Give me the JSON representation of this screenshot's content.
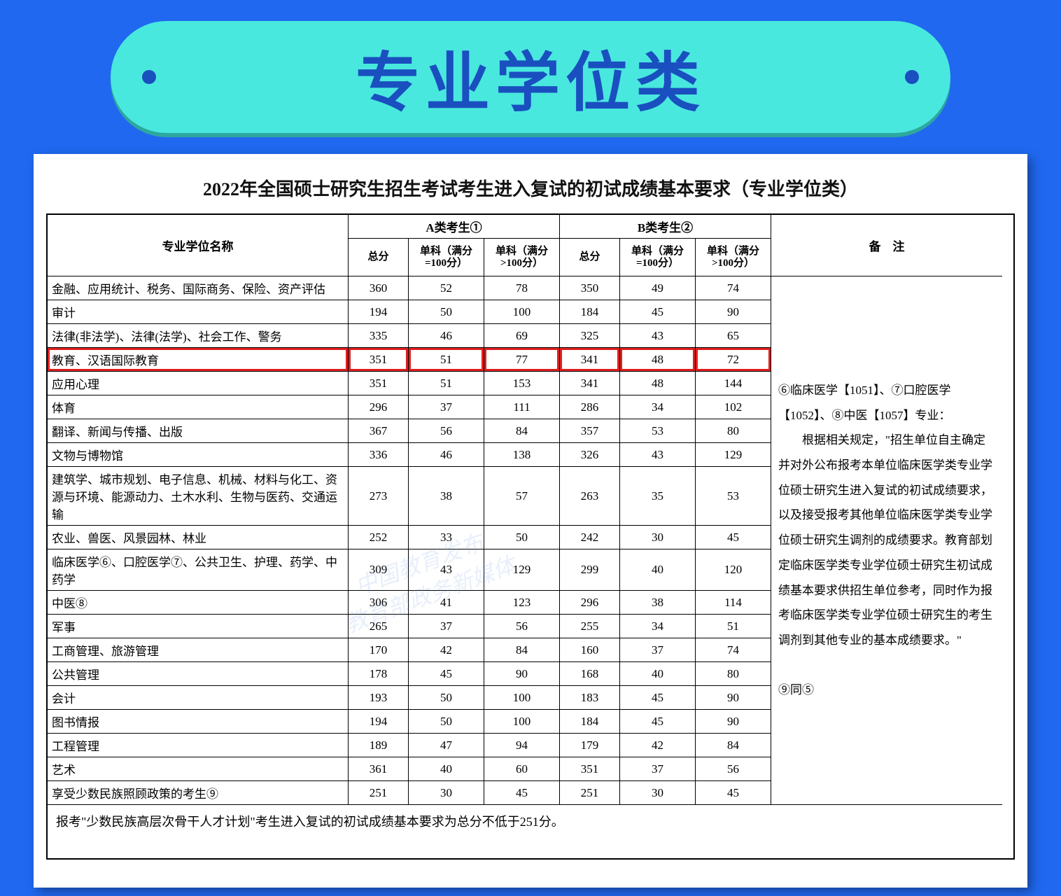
{
  "banner": {
    "title": "专业学位类"
  },
  "sheet": {
    "title": "2022年全国硕士研究生招生考试考生进入复试的初试成绩基本要求（专业学位类）"
  },
  "watermark": {
    "line1": "中国教育发布",
    "line2": "教育部政务新媒体"
  },
  "headers": {
    "name": "专业学位名称",
    "groupA": "A类考生①",
    "groupB": "B类考生②",
    "notes": "备　注",
    "total": "总分",
    "sub100": "单科（满分=100分）",
    "subgt100": "单科（满分>100分）"
  },
  "notes_text": "⑥临床医学【1051】、⑦口腔医学【1052】、⑧中医【1057】专业：\n　　根据相关规定，\"招生单位自主确定并对外公布报考本单位临床医学类专业学位硕士研究生进入复试的初试成绩要求，以及接受报考其他单位临床医学类专业学位硕士研究生调剂的成绩要求。教育部划定临床医学类专业学位硕士研究生初试成绩基本要求供招生单位参考，同时作为报考临床医学类专业学位硕士研究生的考生调剂到其他专业的基本成绩要求。\"\n\n⑨同⑤",
  "footnote": "报考\"少数民族高层次骨干人才计划\"考生进入复试的初试成绩基本要求为总分不低于251分。",
  "rows": [
    {
      "name": "金融、应用统计、税务、国际商务、保险、资产评估",
      "a": [
        "360",
        "52",
        "78"
      ],
      "b": [
        "350",
        "49",
        "74"
      ],
      "h": 2
    },
    {
      "name": "审计",
      "a": [
        "194",
        "50",
        "100"
      ],
      "b": [
        "184",
        "45",
        "90"
      ],
      "h": 1
    },
    {
      "name": "法律(非法学)、法律(法学)、社会工作、警务",
      "a": [
        "335",
        "46",
        "69"
      ],
      "b": [
        "325",
        "43",
        "65"
      ],
      "h": 2
    },
    {
      "name": "教育、汉语国际教育",
      "a": [
        "351",
        "51",
        "77"
      ],
      "b": [
        "341",
        "48",
        "72"
      ],
      "h": 1,
      "highlight": true
    },
    {
      "name": "应用心理",
      "a": [
        "351",
        "51",
        "153"
      ],
      "b": [
        "341",
        "48",
        "144"
      ],
      "h": 1
    },
    {
      "name": "体育",
      "a": [
        "296",
        "37",
        "111"
      ],
      "b": [
        "286",
        "34",
        "102"
      ],
      "h": 1
    },
    {
      "name": "翻译、新闻与传播、出版",
      "a": [
        "367",
        "56",
        "84"
      ],
      "b": [
        "357",
        "53",
        "80"
      ],
      "h": 1
    },
    {
      "name": "文物与博物馆",
      "a": [
        "336",
        "46",
        "138"
      ],
      "b": [
        "326",
        "43",
        "129"
      ],
      "h": 1
    },
    {
      "name": "建筑学、城市规划、电子信息、机械、材料与化工、资源与环境、能源动力、土木水利、生物与医药、交通运输",
      "a": [
        "273",
        "38",
        "57"
      ],
      "b": [
        "263",
        "35",
        "53"
      ],
      "h": 3
    },
    {
      "name": "农业、兽医、风景园林、林业",
      "a": [
        "252",
        "33",
        "50"
      ],
      "b": [
        "242",
        "30",
        "45"
      ],
      "h": 1
    },
    {
      "name": "临床医学⑥、口腔医学⑦、公共卫生、护理、药学、中药学",
      "a": [
        "309",
        "43",
        "129"
      ],
      "b": [
        "299",
        "40",
        "120"
      ],
      "h": 2
    },
    {
      "name": "中医⑧",
      "a": [
        "306",
        "41",
        "123"
      ],
      "b": [
        "296",
        "38",
        "114"
      ],
      "h": 1
    },
    {
      "name": "军事",
      "a": [
        "265",
        "37",
        "56"
      ],
      "b": [
        "255",
        "34",
        "51"
      ],
      "h": 1
    },
    {
      "name": "工商管理、旅游管理",
      "a": [
        "170",
        "42",
        "84"
      ],
      "b": [
        "160",
        "37",
        "74"
      ],
      "h": 1
    },
    {
      "name": "公共管理",
      "a": [
        "178",
        "45",
        "90"
      ],
      "b": [
        "168",
        "40",
        "80"
      ],
      "h": 1
    },
    {
      "name": "会计",
      "a": [
        "193",
        "50",
        "100"
      ],
      "b": [
        "183",
        "45",
        "90"
      ],
      "h": 1
    },
    {
      "name": "图书情报",
      "a": [
        "194",
        "50",
        "100"
      ],
      "b": [
        "184",
        "45",
        "90"
      ],
      "h": 1
    },
    {
      "name": "工程管理",
      "a": [
        "189",
        "47",
        "94"
      ],
      "b": [
        "179",
        "42",
        "84"
      ],
      "h": 1
    },
    {
      "name": "艺术",
      "a": [
        "361",
        "40",
        "60"
      ],
      "b": [
        "351",
        "37",
        "56"
      ],
      "h": 1
    },
    {
      "name": "享受少数民族照顾政策的考生⑨",
      "a": [
        "251",
        "30",
        "45"
      ],
      "b": [
        "251",
        "30",
        "45"
      ],
      "h": 1
    }
  ],
  "style": {
    "page_bg": "#2068f0",
    "banner_bg": "#49e8de",
    "banner_text": "#1a4fc0",
    "dot": "#1a4fc0",
    "highlight_border": "#e02020",
    "table_border": "#000000",
    "sheet_bg": "#ffffff"
  }
}
